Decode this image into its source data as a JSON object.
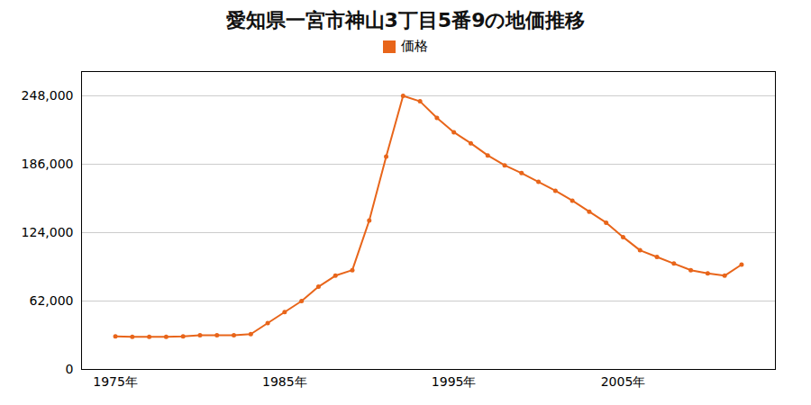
{
  "chart_data": {
    "type": "line",
    "title": "愛知県一宮市神山3丁目5番9の地価推移",
    "x": [
      1975,
      1976,
      1977,
      1978,
      1979,
      1980,
      1981,
      1982,
      1983,
      1984,
      1985,
      1986,
      1987,
      1988,
      1989,
      1990,
      1991,
      1992,
      1993,
      1994,
      1995,
      1996,
      1997,
      1998,
      1999,
      2000,
      2001,
      2002,
      2003,
      2004,
      2005,
      2006,
      2007,
      2008,
      2009,
      2010,
      2011,
      2012
    ],
    "series": [
      {
        "name": "価格",
        "color": "#E8651A",
        "marker": "circle",
        "values": [
          30000,
          29500,
          29500,
          29500,
          30000,
          31000,
          31000,
          31000,
          32000,
          42000,
          52000,
          62000,
          75000,
          85000,
          90000,
          135000,
          193000,
          248000,
          243000,
          228000,
          215000,
          205000,
          194000,
          185000,
          178000,
          170000,
          162000,
          153000,
          143000,
          133000,
          120000,
          108000,
          102000,
          96000,
          90000,
          87000,
          85000,
          95000
        ]
      }
    ],
    "xlim": [
      1973,
      2014
    ],
    "xticks": [
      {
        "value": 1975,
        "label": "1975年"
      },
      {
        "value": 1985,
        "label": "1985年"
      },
      {
        "value": 1995,
        "label": "1995年"
      },
      {
        "value": 2005,
        "label": "2005年"
      }
    ],
    "ylim": [
      0,
      270000
    ],
    "yticks": [
      0,
      {
        "value": 62000,
        "label": "62,000"
      },
      {
        "value": 124000,
        "label": "124,000"
      },
      {
        "value": 186000,
        "label": "186,000"
      },
      {
        "value": 248000,
        "label": "248,000"
      }
    ],
    "grid": "y",
    "legend": "top"
  }
}
